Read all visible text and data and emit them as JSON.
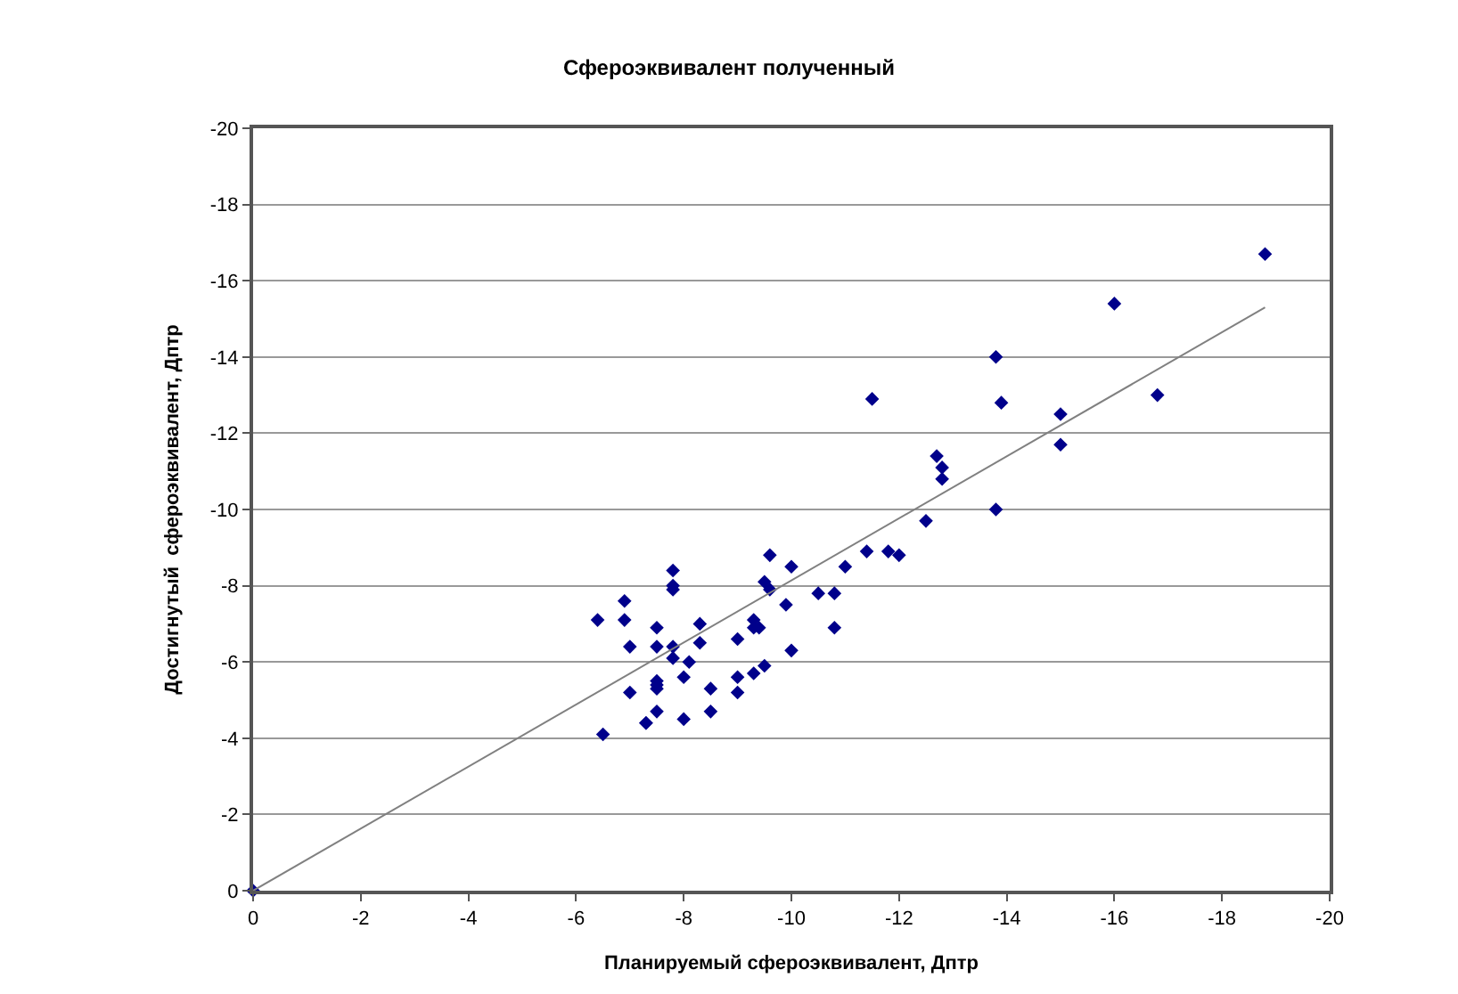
{
  "chart_data": {
    "type": "scatter",
    "title": "Сфероэквивалент полученный",
    "xlabel": "Планируемый сфероэквивалент, Дптр",
    "ylabel": "Достигнутый  сфероэквивалент, Дптр",
    "xlim": [
      0,
      -20
    ],
    "ylim": [
      0,
      -20
    ],
    "xticks": [
      0,
      -2,
      -4,
      -6,
      -8,
      -10,
      -12,
      -14,
      -16,
      -18,
      -20
    ],
    "yticks": [
      0,
      -2,
      -4,
      -6,
      -8,
      -10,
      -12,
      -14,
      -16,
      -18,
      -20
    ],
    "grid": "y",
    "marker": "diamond",
    "series": [
      {
        "color": "#00008b",
        "x": [
          0,
          -9.6,
          -10.0,
          -11.4,
          -11.8,
          -12.0,
          -11.0,
          -9.5,
          -9.6,
          -7.8,
          -7.8,
          -7.8,
          -6.9,
          -6.4,
          -6.9,
          -9.9,
          -10.5,
          -10.8,
          -10.8,
          -9.3,
          -9.3,
          -9.4,
          -8.3,
          -7.5,
          -7.0,
          -7.5,
          -7.8,
          -7.8,
          -8.3,
          -9.0,
          -10.0,
          -8.1,
          -8.0,
          -7.5,
          -7.5,
          -7.5,
          -7.0,
          -8.5,
          -9.0,
          -9.0,
          -9.3,
          -9.5,
          -8.5,
          -7.5,
          -7.3,
          -7.3,
          -8.0,
          -6.5,
          -18.8,
          -16.0,
          -13.8,
          -11.5,
          -13.9,
          -16.8,
          -15.0,
          -15.0,
          -12.7,
          -12.8,
          -12.8,
          -12.5,
          -13.8
        ],
        "values": [
          0,
          -8.8,
          -8.5,
          -8.9,
          -8.9,
          -8.8,
          -8.5,
          -8.1,
          -7.9,
          -8.4,
          -8.0,
          -7.9,
          -7.6,
          -7.1,
          -7.1,
          -7.5,
          -7.8,
          -7.8,
          -6.9,
          -7.1,
          -6.9,
          -6.9,
          -7.0,
          -6.9,
          -6.4,
          -6.4,
          -6.4,
          -6.1,
          -6.5,
          -6.6,
          -6.3,
          -6.0,
          -5.6,
          -5.5,
          -5.4,
          -5.3,
          -5.2,
          -5.3,
          -5.6,
          -5.2,
          -5.7,
          -5.9,
          -4.7,
          -4.7,
          -4.4,
          -4.4,
          -4.5,
          -4.1,
          -16.7,
          -15.4,
          -14.0,
          -12.9,
          -12.8,
          -13.0,
          -12.5,
          -11.7,
          -11.4,
          -11.1,
          -10.8,
          -9.7,
          -10.0
        ]
      },
      {
        "type": "line",
        "color": "#808080",
        "marker": "none",
        "line_style": "solid",
        "x": [
          0,
          -18.8
        ],
        "values": [
          0,
          -15.3
        ]
      }
    ]
  }
}
